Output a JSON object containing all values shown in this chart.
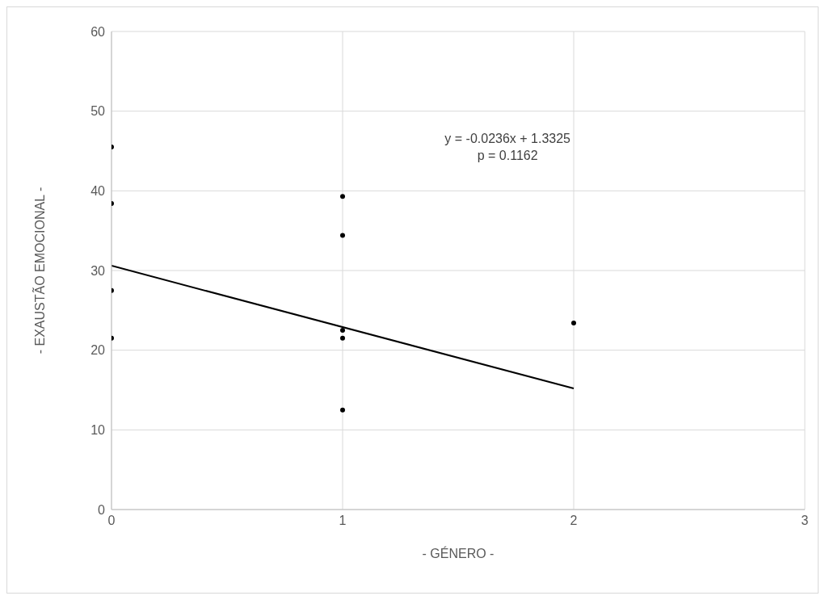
{
  "chart_data": {
    "type": "scatter",
    "xlabel": "- GÉNERO -",
    "ylabel": "- EXAUSTÃO EMOCIONAL -",
    "annotations": [
      "y = -0.0236x + 1.3325",
      "p = 0.1162"
    ],
    "series": [
      {
        "color": "#000000",
        "marker": "circle",
        "x": [
          0,
          0,
          0,
          0,
          1,
          1,
          1,
          1,
          1,
          2
        ],
        "values": [
          45.5,
          38.4,
          27.5,
          21.5,
          39.3,
          34.4,
          22.5,
          21.5,
          12.5,
          23.4
        ]
      },
      {
        "type": "line",
        "color": "#000000",
        "marker": "none",
        "line_style": "solid",
        "x": [
          0,
          2
        ],
        "values": [
          30.6,
          15.2
        ]
      }
    ],
    "xlim": [
      0,
      3
    ],
    "xticks": [
      0,
      1,
      2,
      3
    ],
    "ylim": [
      0,
      60
    ],
    "yticks": [
      0,
      10,
      20,
      30,
      40,
      50,
      60
    ],
    "grid": true
  }
}
